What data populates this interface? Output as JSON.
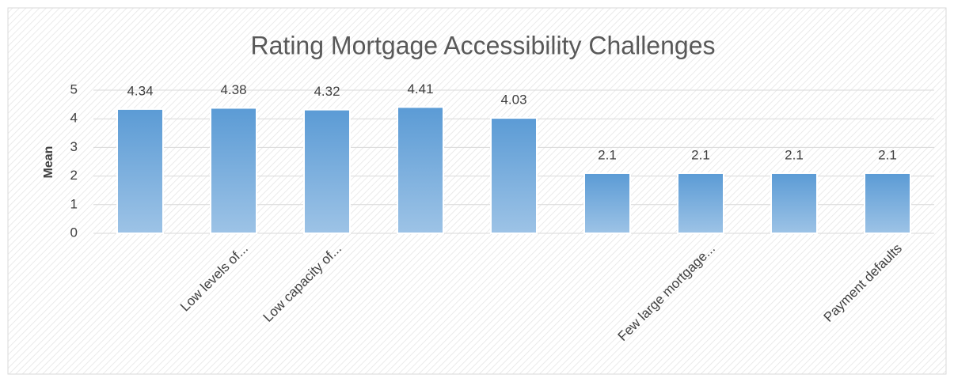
{
  "chart_data": {
    "type": "bar",
    "title": "Rating Mortgage Accessibility Challenges",
    "y_label": "Mean",
    "categories": [
      null,
      "Low levels of...",
      "Low capacity of...",
      null,
      null,
      null,
      "Few large mortgage...",
      null,
      "Payment defaults"
    ],
    "values": [
      4.34,
      4.38,
      4.32,
      4.41,
      4.03,
      2.1,
      2.1,
      2.1,
      2.1
    ],
    "color": "#5b9bd5",
    "ylim": [
      0,
      5
    ],
    "yticks": [
      0,
      1,
      2,
      3,
      4,
      5
    ],
    "grid": true
  }
}
